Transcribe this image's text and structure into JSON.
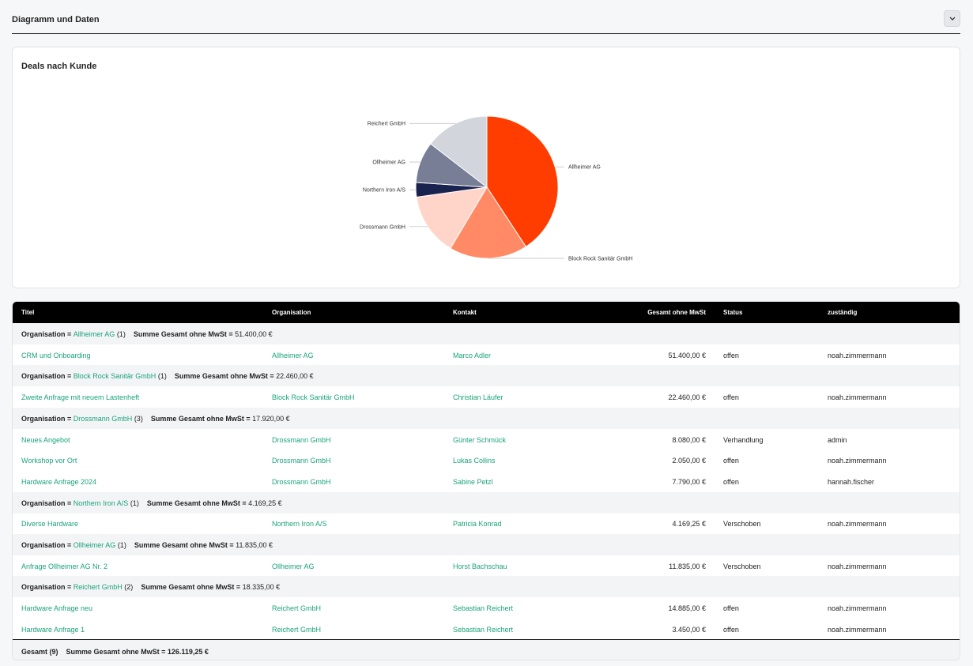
{
  "section": {
    "title": "Diagramm und Daten"
  },
  "chart": {
    "title": "Deals nach Kunde"
  },
  "chart_data": {
    "type": "pie",
    "title": "Deals nach Kunde",
    "slices": [
      {
        "label": "Allheimer AG",
        "value": 51400.0,
        "color": "#ff3d00"
      },
      {
        "label": "Block Rock Sanitär GmbH",
        "value": 22460.0,
        "color": "#ff8a65"
      },
      {
        "label": "Drossmann GmbH",
        "value": 17920.0,
        "color": "#ffd5c9"
      },
      {
        "label": "Northern Iron A/S",
        "value": 4169.25,
        "color": "#1a2350"
      },
      {
        "label": "Ollheimer AG",
        "value": 11835.0,
        "color": "#777e95"
      },
      {
        "label": "Reichert GmbH",
        "value": 18335.0,
        "color": "#d2d5dc"
      }
    ]
  },
  "table": {
    "headers": {
      "title": "Titel",
      "org": "Organisation",
      "contact": "Kontakt",
      "amount": "Gesamt ohne MwSt",
      "status": "Status",
      "owner": "zuständig"
    },
    "group_prefix": "Organisation = ",
    "sum_label": "Summe Gesamt ohne MwSt = ",
    "groups": [
      {
        "org": "Allheimer AG",
        "count": "(1)",
        "sum": "51.400,00 €",
        "rows": [
          {
            "title": "CRM und Onboarding",
            "org": "Allheimer AG",
            "contact": "Marco Adler",
            "amount": "51.400,00 €",
            "status": "offen",
            "owner": "noah.zimmermann"
          }
        ]
      },
      {
        "org": "Block Rock Sanitär GmbH",
        "count": "(1)",
        "sum": "22.460,00 €",
        "rows": [
          {
            "title": "Zweite Anfrage mit neuem Lastenheft",
            "org": "Block Rock Sanitär GmbH",
            "contact": "Christian Läufer",
            "amount": "22.460,00 €",
            "status": "offen",
            "owner": "noah.zimmermann"
          }
        ]
      },
      {
        "org": "Drossmann GmbH",
        "count": "(3)",
        "sum": "17.920,00 €",
        "rows": [
          {
            "title": "Neues Angebot",
            "org": "Drossmann GmbH",
            "contact": "Günter Schmück",
            "amount": "8.080,00 €",
            "status": "Verhandlung",
            "owner": "admin"
          },
          {
            "title": "Workshop vor Ort",
            "org": "Drossmann GmbH",
            "contact": "Lukas Collins",
            "amount": "2.050,00 €",
            "status": "offen",
            "owner": "noah.zimmermann"
          },
          {
            "title": "Hardware Anfrage 2024",
            "org": "Drossmann GmbH",
            "contact": "Sabine Petzl",
            "amount": "7.790,00 €",
            "status": "offen",
            "owner": "hannah.fischer"
          }
        ]
      },
      {
        "org": "Northern Iron A/S",
        "count": "(1)",
        "sum": "4.169,25 €",
        "rows": [
          {
            "title": "Diverse Hardware",
            "org": "Northern Iron A/S",
            "contact": "Patricia Konrad",
            "amount": "4.169,25 €",
            "status": "Verschoben",
            "owner": "noah.zimmermann"
          }
        ]
      },
      {
        "org": "Ollheimer AG",
        "count": "(1)",
        "sum": "11.835,00 €",
        "rows": [
          {
            "title": "Anfrage Ollheimer AG Nr. 2",
            "org": "Ollheimer AG",
            "contact": "Horst Bachschau",
            "amount": "11.835,00 €",
            "status": "Verschoben",
            "owner": "noah.zimmermann"
          }
        ]
      },
      {
        "org": "Reichert GmbH",
        "count": "(2)",
        "sum": "18.335,00 €",
        "rows": [
          {
            "title": "Hardware Anfrage neu",
            "org": "Reichert GmbH",
            "contact": "Sebastian Reichert",
            "amount": "14.885,00 €",
            "status": "offen",
            "owner": "noah.zimmermann"
          },
          {
            "title": "Hardware Anfrage 1",
            "org": "Reichert GmbH",
            "contact": "Sebastian Reichert",
            "amount": "3.450,00 €",
            "status": "offen",
            "owner": "noah.zimmermann"
          }
        ]
      }
    ],
    "total": {
      "label": "Gesamt (9)",
      "sum": "Summe Gesamt ohne MwSt = 126.119,25 €"
    }
  }
}
